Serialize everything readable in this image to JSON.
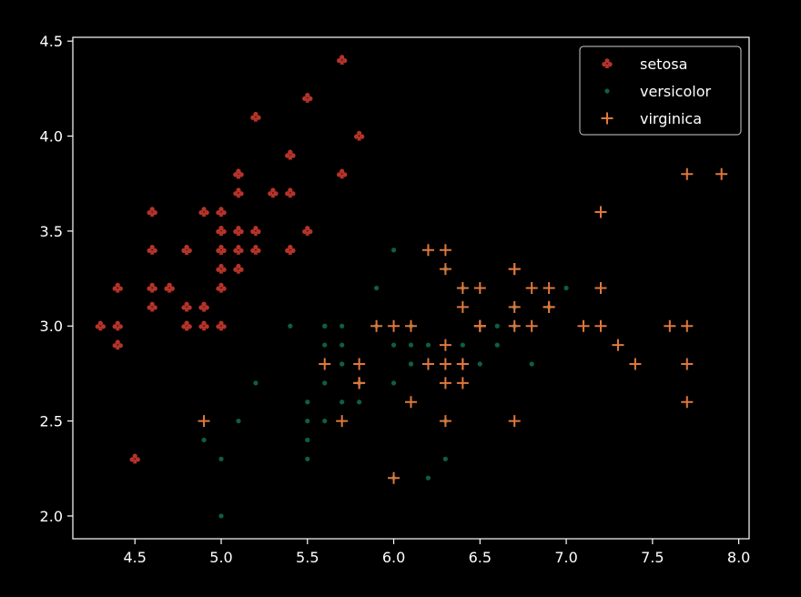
{
  "chart_data": {
    "type": "scatter",
    "xlim": [
      4.14,
      8.06
    ],
    "ylim": [
      1.88,
      4.52
    ],
    "x_ticks": [
      4.5,
      5.0,
      5.5,
      6.0,
      6.5,
      7.0,
      7.5,
      8.0
    ],
    "y_ticks": [
      2.0,
      2.5,
      3.0,
      3.5,
      4.0,
      4.5
    ],
    "grid": false,
    "legend_position": "top-right",
    "background": "#000000",
    "series": [
      {
        "name": "setosa",
        "marker": "club",
        "color": "#b5332a",
        "points": [
          [
            5.1,
            3.5
          ],
          [
            4.9,
            3.0
          ],
          [
            4.7,
            3.2
          ],
          [
            4.6,
            3.1
          ],
          [
            5.0,
            3.6
          ],
          [
            5.4,
            3.9
          ],
          [
            4.6,
            3.4
          ],
          [
            5.0,
            3.4
          ],
          [
            4.4,
            2.9
          ],
          [
            4.9,
            3.1
          ],
          [
            5.4,
            3.7
          ],
          [
            4.8,
            3.4
          ],
          [
            4.8,
            3.0
          ],
          [
            4.3,
            3.0
          ],
          [
            5.8,
            4.0
          ],
          [
            5.7,
            4.4
          ],
          [
            5.4,
            3.9
          ],
          [
            5.1,
            3.5
          ],
          [
            5.7,
            3.8
          ],
          [
            5.1,
            3.8
          ],
          [
            5.4,
            3.4
          ],
          [
            5.1,
            3.7
          ],
          [
            4.6,
            3.6
          ],
          [
            5.1,
            3.3
          ],
          [
            4.8,
            3.4
          ],
          [
            5.0,
            3.0
          ],
          [
            5.0,
            3.4
          ],
          [
            5.2,
            3.5
          ],
          [
            5.2,
            3.4
          ],
          [
            4.7,
            3.2
          ],
          [
            4.8,
            3.1
          ],
          [
            5.4,
            3.4
          ],
          [
            5.2,
            4.1
          ],
          [
            5.5,
            4.2
          ],
          [
            4.9,
            3.1
          ],
          [
            5.0,
            3.2
          ],
          [
            5.5,
            3.5
          ],
          [
            4.9,
            3.6
          ],
          [
            4.4,
            3.0
          ],
          [
            5.1,
            3.4
          ],
          [
            5.0,
            3.5
          ],
          [
            4.5,
            2.3
          ],
          [
            4.4,
            3.2
          ],
          [
            5.0,
            3.5
          ],
          [
            5.1,
            3.8
          ],
          [
            4.8,
            3.0
          ],
          [
            5.1,
            3.8
          ],
          [
            4.6,
            3.2
          ],
          [
            5.3,
            3.7
          ],
          [
            5.0,
            3.3
          ]
        ]
      },
      {
        "name": "versicolor",
        "marker": "dot",
        "color": "#0f5e44",
        "points": [
          [
            7.0,
            3.2
          ],
          [
            6.4,
            3.2
          ],
          [
            6.9,
            3.1
          ],
          [
            5.5,
            2.3
          ],
          [
            6.5,
            2.8
          ],
          [
            5.7,
            2.8
          ],
          [
            6.3,
            3.3
          ],
          [
            4.9,
            2.4
          ],
          [
            6.6,
            2.9
          ],
          [
            5.2,
            2.7
          ],
          [
            5.0,
            2.0
          ],
          [
            5.9,
            3.0
          ],
          [
            6.0,
            2.2
          ],
          [
            6.1,
            2.9
          ],
          [
            5.6,
            2.9
          ],
          [
            6.7,
            3.1
          ],
          [
            5.6,
            3.0
          ],
          [
            5.8,
            2.7
          ],
          [
            6.2,
            2.2
          ],
          [
            5.6,
            2.5
          ],
          [
            5.9,
            3.2
          ],
          [
            6.1,
            2.8
          ],
          [
            6.3,
            2.5
          ],
          [
            6.1,
            2.8
          ],
          [
            6.4,
            2.9
          ],
          [
            6.6,
            3.0
          ],
          [
            6.8,
            2.8
          ],
          [
            6.7,
            3.0
          ],
          [
            6.0,
            2.9
          ],
          [
            5.7,
            2.6
          ],
          [
            5.5,
            2.4
          ],
          [
            5.5,
            2.4
          ],
          [
            5.8,
            2.7
          ],
          [
            6.0,
            2.7
          ],
          [
            5.4,
            3.0
          ],
          [
            6.0,
            3.4
          ],
          [
            6.7,
            3.1
          ],
          [
            6.3,
            2.3
          ],
          [
            5.6,
            3.0
          ],
          [
            5.5,
            2.5
          ],
          [
            5.5,
            2.6
          ],
          [
            6.1,
            3.0
          ],
          [
            5.8,
            2.6
          ],
          [
            5.0,
            2.3
          ],
          [
            5.6,
            2.7
          ],
          [
            5.7,
            3.0
          ],
          [
            5.7,
            2.9
          ],
          [
            6.2,
            2.9
          ],
          [
            5.1,
            2.5
          ],
          [
            5.7,
            2.8
          ]
        ]
      },
      {
        "name": "virginica",
        "marker": "plus",
        "color": "#e0783c",
        "points": [
          [
            6.3,
            3.3
          ],
          [
            5.8,
            2.7
          ],
          [
            7.1,
            3.0
          ],
          [
            6.3,
            2.9
          ],
          [
            6.5,
            3.0
          ],
          [
            7.6,
            3.0
          ],
          [
            4.9,
            2.5
          ],
          [
            7.3,
            2.9
          ],
          [
            6.7,
            2.5
          ],
          [
            7.2,
            3.6
          ],
          [
            6.5,
            3.2
          ],
          [
            6.4,
            2.7
          ],
          [
            6.8,
            3.0
          ],
          [
            5.7,
            2.5
          ],
          [
            5.8,
            2.8
          ],
          [
            6.4,
            3.2
          ],
          [
            6.5,
            3.0
          ],
          [
            7.7,
            3.8
          ],
          [
            7.7,
            2.6
          ],
          [
            6.0,
            2.2
          ],
          [
            6.9,
            3.2
          ],
          [
            5.6,
            2.8
          ],
          [
            7.7,
            2.8
          ],
          [
            6.3,
            2.7
          ],
          [
            6.7,
            3.3
          ],
          [
            7.2,
            3.2
          ],
          [
            6.2,
            2.8
          ],
          [
            6.1,
            3.0
          ],
          [
            6.4,
            2.8
          ],
          [
            7.2,
            3.0
          ],
          [
            7.4,
            2.8
          ],
          [
            7.9,
            3.8
          ],
          [
            6.4,
            2.8
          ],
          [
            6.3,
            2.8
          ],
          [
            6.1,
            2.6
          ],
          [
            7.7,
            3.0
          ],
          [
            6.3,
            3.4
          ],
          [
            6.4,
            3.1
          ],
          [
            6.0,
            3.0
          ],
          [
            6.9,
            3.1
          ],
          [
            6.7,
            3.1
          ],
          [
            6.9,
            3.1
          ],
          [
            5.8,
            2.7
          ],
          [
            6.8,
            3.2
          ],
          [
            6.7,
            3.3
          ],
          [
            6.7,
            3.0
          ],
          [
            6.3,
            2.5
          ],
          [
            6.5,
            3.0
          ],
          [
            6.2,
            3.4
          ],
          [
            5.9,
            3.0
          ]
        ]
      }
    ]
  }
}
